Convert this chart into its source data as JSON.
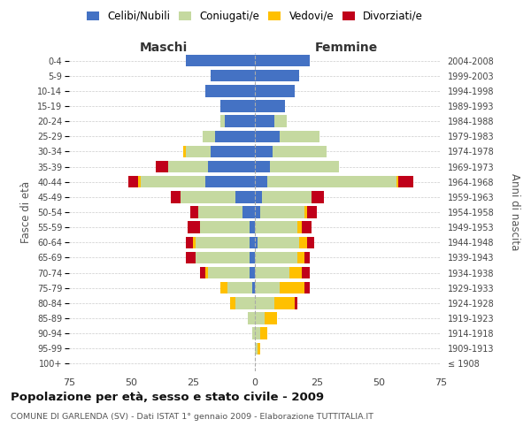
{
  "age_groups": [
    "100+",
    "95-99",
    "90-94",
    "85-89",
    "80-84",
    "75-79",
    "70-74",
    "65-69",
    "60-64",
    "55-59",
    "50-54",
    "45-49",
    "40-44",
    "35-39",
    "30-34",
    "25-29",
    "20-24",
    "15-19",
    "10-14",
    "5-9",
    "0-4"
  ],
  "birth_years": [
    "≤ 1908",
    "1909-1913",
    "1914-1918",
    "1919-1923",
    "1924-1928",
    "1929-1933",
    "1934-1938",
    "1939-1943",
    "1944-1948",
    "1949-1953",
    "1954-1958",
    "1959-1963",
    "1964-1968",
    "1969-1973",
    "1974-1978",
    "1979-1983",
    "1984-1988",
    "1989-1993",
    "1994-1998",
    "1999-2003",
    "2004-2008"
  ],
  "males": {
    "celibi": [
      0,
      0,
      0,
      0,
      0,
      1,
      2,
      2,
      2,
      2,
      5,
      8,
      20,
      19,
      18,
      16,
      12,
      14,
      20,
      18,
      28
    ],
    "coniugati": [
      0,
      0,
      1,
      3,
      8,
      10,
      17,
      22,
      22,
      20,
      18,
      22,
      26,
      16,
      10,
      5,
      2,
      0,
      0,
      0,
      0
    ],
    "vedovi": [
      0,
      0,
      0,
      0,
      2,
      3,
      1,
      0,
      1,
      0,
      0,
      0,
      1,
      0,
      1,
      0,
      0,
      0,
      0,
      0,
      0
    ],
    "divorziati": [
      0,
      0,
      0,
      0,
      0,
      0,
      2,
      4,
      3,
      5,
      3,
      4,
      4,
      5,
      0,
      0,
      0,
      0,
      0,
      0,
      0
    ]
  },
  "females": {
    "nubili": [
      0,
      0,
      0,
      0,
      0,
      0,
      0,
      0,
      1,
      0,
      2,
      3,
      5,
      6,
      7,
      10,
      8,
      12,
      16,
      18,
      22
    ],
    "coniugate": [
      0,
      1,
      2,
      4,
      8,
      10,
      14,
      17,
      17,
      17,
      18,
      20,
      52,
      28,
      22,
      16,
      5,
      0,
      0,
      0,
      0
    ],
    "vedove": [
      0,
      1,
      3,
      5,
      8,
      10,
      5,
      3,
      3,
      2,
      1,
      0,
      1,
      0,
      0,
      0,
      0,
      0,
      0,
      0,
      0
    ],
    "divorziate": [
      0,
      0,
      0,
      0,
      1,
      2,
      3,
      2,
      3,
      4,
      4,
      5,
      6,
      0,
      0,
      0,
      0,
      0,
      0,
      0,
      0
    ]
  },
  "colors": {
    "celibi": "#4472c4",
    "coniugati": "#c5d9a0",
    "vedovi": "#ffc000",
    "divorziati": "#c0001a"
  },
  "xlim": 75,
  "title": "Popolazione per età, sesso e stato civile - 2009",
  "subtitle": "COMUNE DI GARLENDA (SV) - Dati ISTAT 1° gennaio 2009 - Elaborazione TUTTITALIA.IT",
  "xlabel_maschi": "Maschi",
  "xlabel_femmine": "Femmine",
  "ylabel_left": "Fasce di età",
  "ylabel_right": "Anni di nascita",
  "bg_color": "#ffffff",
  "grid_color": "#cccccc"
}
